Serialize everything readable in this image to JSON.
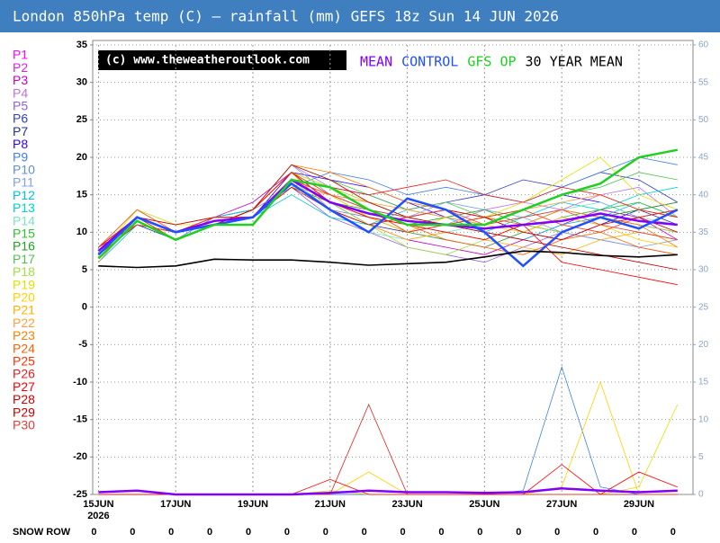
{
  "chart_data": {
    "type": "line",
    "title": "London 850hPa temp (C) — rainfall (mm)   GEFS 18z Sun 14 JUN 2026",
    "watermark": "(c) www.theweatheroutlook.com",
    "x": [
      15,
      16,
      17,
      18,
      19,
      20,
      21,
      22,
      23,
      24,
      25,
      26,
      27,
      28,
      29,
      30
    ],
    "xlim": [
      14.85,
      30.4
    ],
    "xticks": [
      {
        "value": 15,
        "label": "15JUN"
      },
      {
        "value": 17,
        "label": "17JUN"
      },
      {
        "value": 19,
        "label": "19JUN"
      },
      {
        "value": 21,
        "label": "21JUN"
      },
      {
        "value": 23,
        "label": "23JUN"
      },
      {
        "value": 25,
        "label": "25JUN"
      },
      {
        "value": 27,
        "label": "27JUN"
      },
      {
        "value": 29,
        "label": "29JUN"
      }
    ],
    "year_label": "2026",
    "ylim": [
      -25,
      35
    ],
    "yticks": [
      -25,
      -20,
      -15,
      -10,
      -5,
      0,
      5,
      10,
      15,
      20,
      25,
      30,
      35
    ],
    "y2lim": [
      0,
      60
    ],
    "y2ticks": [
      0,
      5,
      10,
      15,
      20,
      25,
      30,
      35,
      40,
      45,
      50,
      55,
      60
    ],
    "grid": true,
    "snow_row_label": "SNOW ROW",
    "snow_row": [
      0,
      0,
      0,
      0,
      0,
      0,
      0,
      0,
      0,
      0,
      0,
      0,
      0,
      0,
      0,
      0
    ],
    "series": [
      {
        "name": "P1",
        "color": "#ff00ff",
        "values": [
          7,
          11,
          10,
          12,
          13,
          18,
          14,
          12,
          10,
          9,
          8,
          10,
          12,
          11,
          13,
          14
        ]
      },
      {
        "name": "P2",
        "color": "#e020e0",
        "values": [
          8,
          12,
          9,
          11,
          12,
          17,
          15,
          14,
          12,
          13,
          12,
          11,
          10,
          12,
          11,
          10
        ]
      },
      {
        "name": "P3",
        "color": "#c000c0",
        "values": [
          7,
          11,
          10,
          12,
          14,
          18,
          13,
          11,
          9,
          8,
          7,
          9,
          11,
          13,
          12,
          9
        ]
      },
      {
        "name": "P4",
        "color": "#c070e0",
        "values": [
          6,
          12,
          11,
          12,
          13,
          19,
          16,
          13,
          12,
          11,
          13,
          14,
          13,
          15,
          16,
          12
        ]
      },
      {
        "name": "P5",
        "color": "#9060e0",
        "values": [
          8,
          13,
          10,
          11,
          12,
          16,
          12,
          10,
          8,
          7,
          6,
          8,
          10,
          9,
          8,
          7
        ]
      },
      {
        "name": "P6",
        "color": "#3040c0",
        "values": [
          7,
          12,
          10,
          11,
          12,
          17,
          16,
          15,
          13,
          14,
          15,
          17,
          16,
          18,
          17,
          14
        ]
      },
      {
        "name": "P7",
        "color": "#2030a0",
        "values": [
          8,
          11,
          9,
          12,
          13,
          18,
          14,
          11,
          10,
          11,
          12,
          10,
          9,
          11,
          13,
          11
        ]
      },
      {
        "name": "P8",
        "color": "#3000ff",
        "values": [
          7,
          12,
          10,
          11,
          12,
          18,
          17,
          16,
          14,
          12,
          11,
          13,
          15,
          14,
          12,
          13
        ]
      },
      {
        "name": "P9",
        "color": "#4080e0",
        "values": [
          7,
          12,
          11,
          12,
          13,
          16,
          18,
          17,
          15,
          16,
          15,
          14,
          16,
          18,
          20,
          19
        ],
        "rain": [
          0,
          0,
          0,
          0,
          0,
          0,
          0,
          0,
          0,
          0,
          0,
          0.5,
          17,
          1,
          0,
          0
        ]
      },
      {
        "name": "P10",
        "color": "#6090d0",
        "values": [
          8,
          11,
          10,
          11,
          12,
          17,
          13,
          12,
          11,
          10,
          9,
          11,
          13,
          12,
          11,
          10
        ]
      },
      {
        "name": "P11",
        "color": "#80a0e0",
        "values": [
          7,
          12,
          9,
          12,
          13,
          19,
          15,
          13,
          12,
          14,
          13,
          12,
          10,
          9,
          8,
          9
        ]
      },
      {
        "name": "P12",
        "color": "#00c0e0",
        "values": [
          6,
          11,
          10,
          11,
          12,
          15,
          12,
          11,
          13,
          12,
          10,
          9,
          11,
          12,
          14,
          12
        ]
      },
      {
        "name": "P13",
        "color": "#00d0d0",
        "values": [
          7,
          12,
          10,
          12,
          13,
          18,
          16,
          14,
          12,
          11,
          10,
          12,
          14,
          13,
          15,
          16
        ]
      },
      {
        "name": "P14",
        "color": "#80e0c0",
        "values": [
          8,
          13,
          11,
          12,
          12,
          17,
          13,
          10,
          9,
          10,
          11,
          12,
          13,
          14,
          12,
          11
        ]
      },
      {
        "name": "P15",
        "color": "#30c030",
        "values": [
          7,
          12,
          10,
          11,
          13,
          18,
          15,
          12,
          10,
          9,
          8,
          10,
          12,
          13,
          14,
          12
        ]
      },
      {
        "name": "P16",
        "color": "#20a020",
        "values": [
          7,
          11,
          10,
          12,
          12,
          16,
          14,
          13,
          11,
          12,
          13,
          11,
          10,
          12,
          13,
          14
        ]
      },
      {
        "name": "P17",
        "color": "#50c050",
        "values": [
          8,
          12,
          9,
          11,
          13,
          19,
          17,
          15,
          13,
          14,
          12,
          13,
          15,
          16,
          18,
          17
        ]
      },
      {
        "name": "P18",
        "color": "#a0e040",
        "values": [
          7,
          12,
          10,
          12,
          12,
          17,
          14,
          11,
          8,
          7,
          9,
          11,
          10,
          12,
          11,
          10
        ]
      },
      {
        "name": "P19",
        "color": "#e0e000",
        "values": [
          7,
          13,
          11,
          11,
          13,
          18,
          16,
          14,
          12,
          11,
          12,
          14,
          17,
          20,
          15,
          13
        ],
        "rain": [
          0,
          0,
          0,
          0,
          0,
          0,
          0.5,
          0,
          0,
          0,
          0,
          0,
          0,
          0,
          1,
          12
        ]
      },
      {
        "name": "P20",
        "color": "#ffd000",
        "values": [
          8,
          12,
          10,
          12,
          12,
          17,
          15,
          12,
          10,
          12,
          11,
          10,
          12,
          11,
          9,
          8
        ],
        "rain": [
          0,
          0,
          0,
          0,
          0,
          0,
          0,
          3,
          0,
          0,
          0,
          0,
          1,
          15,
          0,
          0
        ]
      },
      {
        "name": "P21",
        "color": "#ffb000",
        "values": [
          7,
          11,
          10,
          11,
          13,
          18,
          13,
          11,
          9,
          10,
          9,
          8,
          7,
          9,
          10,
          9
        ]
      },
      {
        "name": "P22",
        "color": "#ffa040",
        "values": [
          6,
          12,
          11,
          12,
          12,
          16,
          15,
          14,
          13,
          12,
          11,
          13,
          14,
          15,
          13,
          12
        ]
      },
      {
        "name": "P23",
        "color": "#ff8000",
        "values": [
          7,
          12,
          10,
          11,
          13,
          19,
          18,
          16,
          14,
          13,
          12,
          11,
          13,
          12,
          11,
          8
        ]
      },
      {
        "name": "P24",
        "color": "#ff6000",
        "values": [
          8,
          13,
          10,
          12,
          12,
          17,
          14,
          12,
          11,
          9,
          8,
          7,
          9,
          10,
          8,
          7
        ]
      },
      {
        "name": "P25",
        "color": "#ff3000",
        "values": [
          7,
          12,
          9,
          11,
          13,
          18,
          15,
          13,
          10,
          11,
          12,
          13,
          11,
          10,
          12,
          13
        ]
      },
      {
        "name": "P26",
        "color": "#e02020",
        "values": [
          7,
          11,
          10,
          12,
          12,
          17,
          16,
          15,
          16,
          17,
          15,
          14,
          16,
          15,
          13,
          12
        ],
        "rain": [
          0,
          0,
          0,
          0,
          0,
          0,
          0,
          12,
          0,
          0,
          0,
          0,
          0,
          0,
          0,
          0
        ]
      },
      {
        "name": "P27",
        "color": "#ff0000",
        "values": [
          8,
          12,
          10,
          11,
          13,
          18,
          14,
          12,
          11,
          10,
          9,
          11,
          6,
          5,
          4,
          3
        ],
        "rain": [
          0,
          0,
          0,
          0,
          0,
          0,
          2,
          0,
          0,
          0,
          0,
          0,
          4,
          0,
          3,
          1
        ]
      },
      {
        "name": "P28",
        "color": "#d00000",
        "values": [
          7,
          12,
          11,
          12,
          12,
          16,
          13,
          11,
          12,
          13,
          12,
          10,
          9,
          11,
          12,
          10
        ]
      },
      {
        "name": "P29",
        "color": "#c00000",
        "values": [
          7,
          12,
          10,
          11,
          13,
          19,
          17,
          14,
          12,
          11,
          10,
          9,
          8,
          7,
          6,
          5
        ]
      },
      {
        "name": "P30",
        "color": "#e04040",
        "values": [
          8,
          11,
          10,
          12,
          12,
          17,
          15,
          13,
          12,
          13,
          11,
          12,
          13,
          11,
          10,
          9
        ]
      },
      {
        "name": "MEAN",
        "color": "#8000ff",
        "values": [
          7.5,
          12,
          10,
          11.5,
          12,
          17,
          14,
          12.5,
          11.5,
          11,
          10.5,
          11,
          11.5,
          12.5,
          11.5,
          11
        ],
        "rain": [
          0.3,
          0.5,
          0,
          0,
          0,
          0,
          0.2,
          0.5,
          0.3,
          0.3,
          0.2,
          0.3,
          0.8,
          0.5,
          0.3,
          0.5
        ]
      },
      {
        "name": "CONTROL",
        "color": "#2050ff",
        "values": [
          7,
          12,
          10,
          11,
          12,
          16.5,
          13,
          10,
          14.5,
          13,
          10,
          5.5,
          10,
          12,
          10.5,
          13
        ]
      },
      {
        "name": "GFS OP",
        "color": "#20d020",
        "values": [
          6.5,
          11.5,
          9,
          11,
          11,
          17,
          16,
          13,
          11,
          11,
          11,
          13,
          15,
          16.5,
          20,
          21
        ]
      },
      {
        "name": "30 YEAR MEAN",
        "color": "#000000",
        "values": [
          5.5,
          5.3,
          5.5,
          6.4,
          6.3,
          6.3,
          6.0,
          5.6,
          5.8,
          6.0,
          6.7,
          7.5,
          7.3,
          6.9,
          6.7,
          7.0
        ]
      }
    ]
  }
}
